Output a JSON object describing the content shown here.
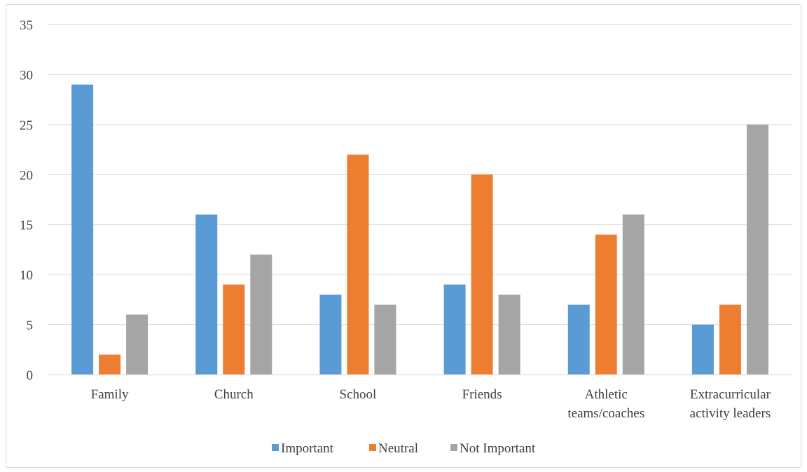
{
  "chart_data": {
    "type": "bar",
    "categories": [
      [
        "Family"
      ],
      [
        "Church"
      ],
      [
        "School"
      ],
      [
        "Friends"
      ],
      [
        "Athletic",
        "teams/coaches"
      ],
      [
        "Extracurricular",
        "activity leaders"
      ]
    ],
    "series": [
      {
        "name": "Important",
        "color": "#5b9bd5",
        "values": [
          29,
          16,
          8,
          9,
          7,
          5
        ]
      },
      {
        "name": "Neutral",
        "color": "#ed7d31",
        "values": [
          2,
          9,
          22,
          20,
          14,
          7
        ]
      },
      {
        "name": "Not Important",
        "color": "#a5a5a5",
        "values": [
          6,
          12,
          7,
          8,
          16,
          25
        ]
      }
    ],
    "ylim": [
      0,
      35
    ],
    "yticks": [
      0,
      5,
      10,
      15,
      20,
      25,
      30,
      35
    ],
    "title": "",
    "xlabel": "",
    "ylabel": "",
    "grid": true,
    "legend": "bottom-center"
  }
}
